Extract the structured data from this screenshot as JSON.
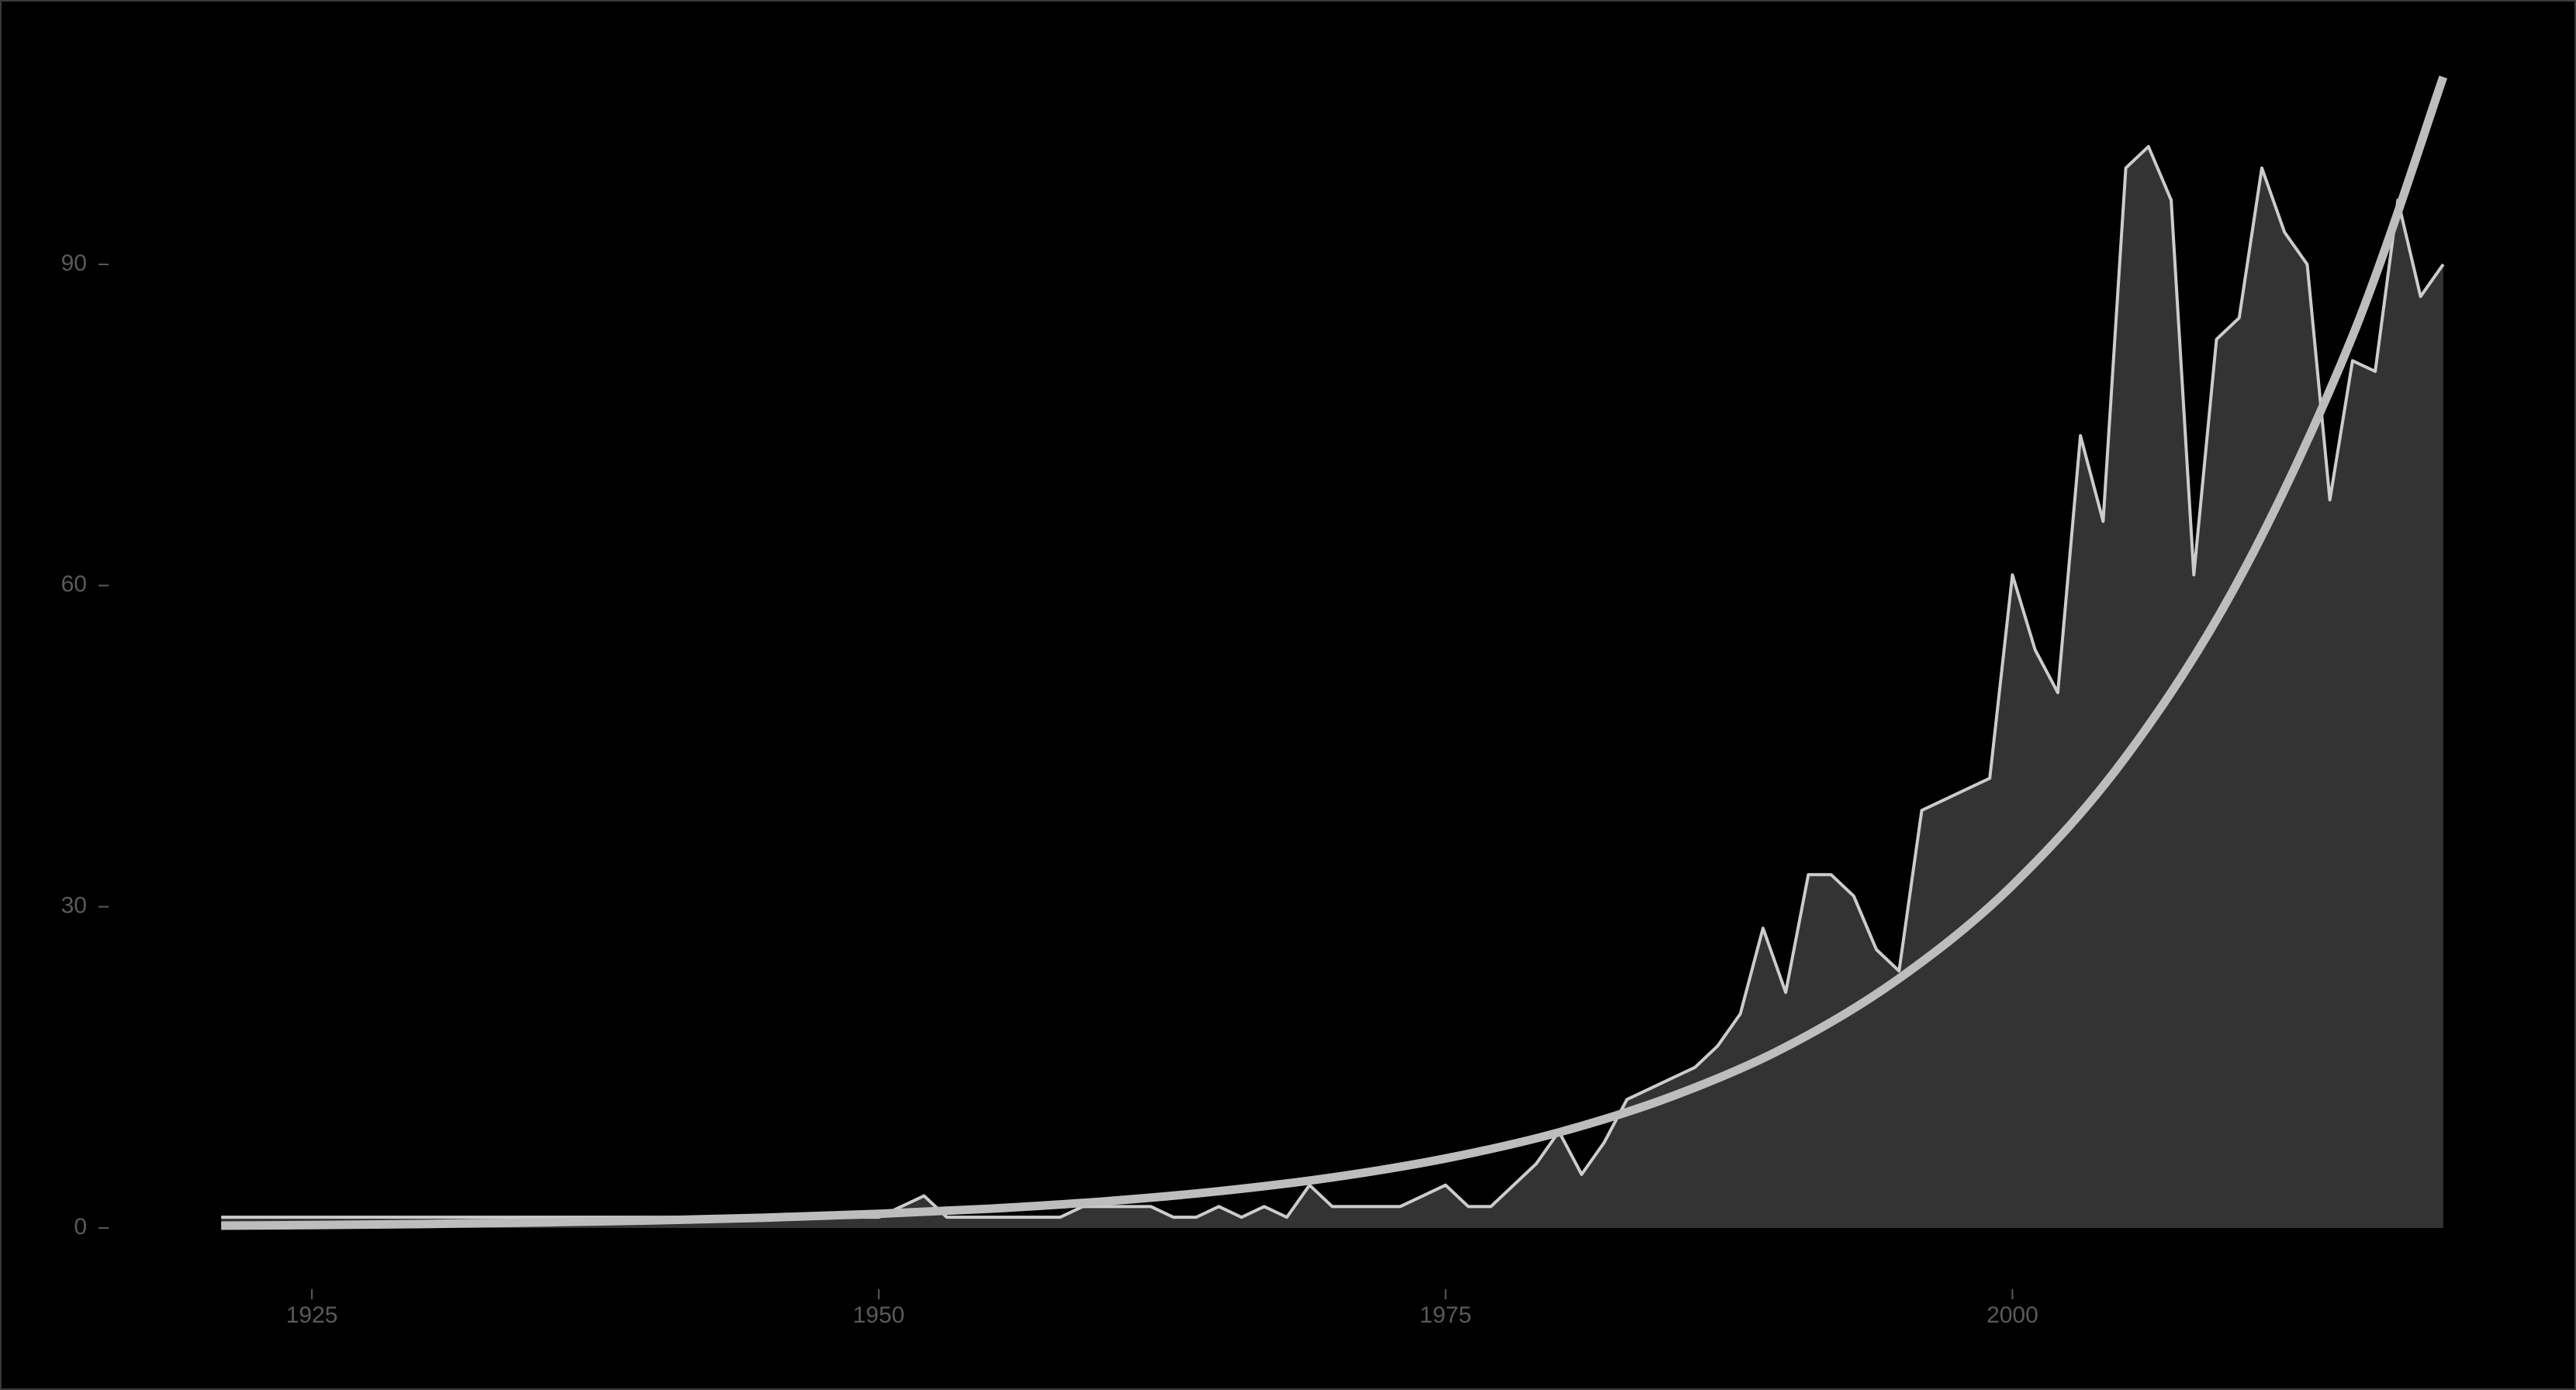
{
  "chart_data": {
    "type": "area",
    "xlim": [
      1916,
      2024
    ],
    "ylim": [
      -5,
      111
    ],
    "xticks": [
      1925,
      1950,
      1975,
      2000
    ],
    "yticks": [
      0,
      30,
      60,
      90
    ],
    "grid": false,
    "series": [
      {
        "color": "#cccccc",
        "fill": "#333333",
        "x": [
          1921,
          1922,
          1923,
          1924,
          1925,
          1926,
          1927,
          1928,
          1929,
          1930,
          1931,
          1932,
          1933,
          1934,
          1935,
          1936,
          1937,
          1938,
          1939,
          1940,
          1941,
          1942,
          1943,
          1944,
          1945,
          1946,
          1947,
          1948,
          1949,
          1950,
          1951,
          1952,
          1953,
          1954,
          1955,
          1956,
          1957,
          1958,
          1959,
          1960,
          1961,
          1962,
          1963,
          1964,
          1965,
          1966,
          1967,
          1968,
          1969,
          1970,
          1971,
          1972,
          1973,
          1974,
          1975,
          1976,
          1977,
          1978,
          1979,
          1980,
          1981,
          1982,
          1983,
          1984,
          1985,
          1986,
          1987,
          1988,
          1989,
          1990,
          1991,
          1992,
          1993,
          1994,
          1995,
          1996,
          1997,
          1998,
          1999,
          2000,
          2001,
          2002,
          2003,
          2004,
          2005,
          2006,
          2007,
          2008,
          2009,
          2010,
          2011,
          2012,
          2013,
          2014,
          2015,
          2016,
          2017,
          2018,
          2019
        ],
        "values": [
          1,
          1,
          1,
          1,
          1,
          1,
          1,
          1,
          1,
          1,
          1,
          1,
          1,
          1,
          1,
          1,
          1,
          1,
          1,
          1,
          1,
          1,
          1,
          1,
          1,
          1,
          1,
          1,
          1,
          1,
          2,
          3,
          1,
          1,
          1,
          1,
          1,
          1,
          2,
          2,
          2,
          2,
          1,
          1,
          2,
          1,
          2,
          1,
          4,
          2,
          2,
          2,
          2,
          3,
          4,
          2,
          2,
          4,
          6,
          9,
          5,
          8,
          12,
          13,
          14,
          15,
          17,
          20,
          28,
          22,
          33,
          33,
          31,
          26,
          24,
          39,
          40,
          41,
          42,
          61,
          54,
          50,
          74,
          66,
          99,
          101,
          96,
          61,
          83,
          85,
          99,
          93,
          90,
          68,
          81,
          80,
          96,
          87,
          90
        ]
      },
      {
        "color": "#bdbdbd",
        "x": [
          1921,
          1925,
          1930,
          1935,
          1940,
          1945,
          1950,
          1955,
          1960,
          1965,
          1970,
          1975,
          1980,
          1985,
          1990,
          1995,
          2000,
          2005,
          2010,
          2015,
          2019
        ],
        "values": [
          0.21,
          0.27,
          0.37,
          0.51,
          0.7,
          0.96,
          1.32,
          1.81,
          2.49,
          3.43,
          4.72,
          6.49,
          8.93,
          12.3,
          16.9,
          23.3,
          32,
          44,
          60.6,
          83.3,
          107.5
        ]
      }
    ]
  }
}
